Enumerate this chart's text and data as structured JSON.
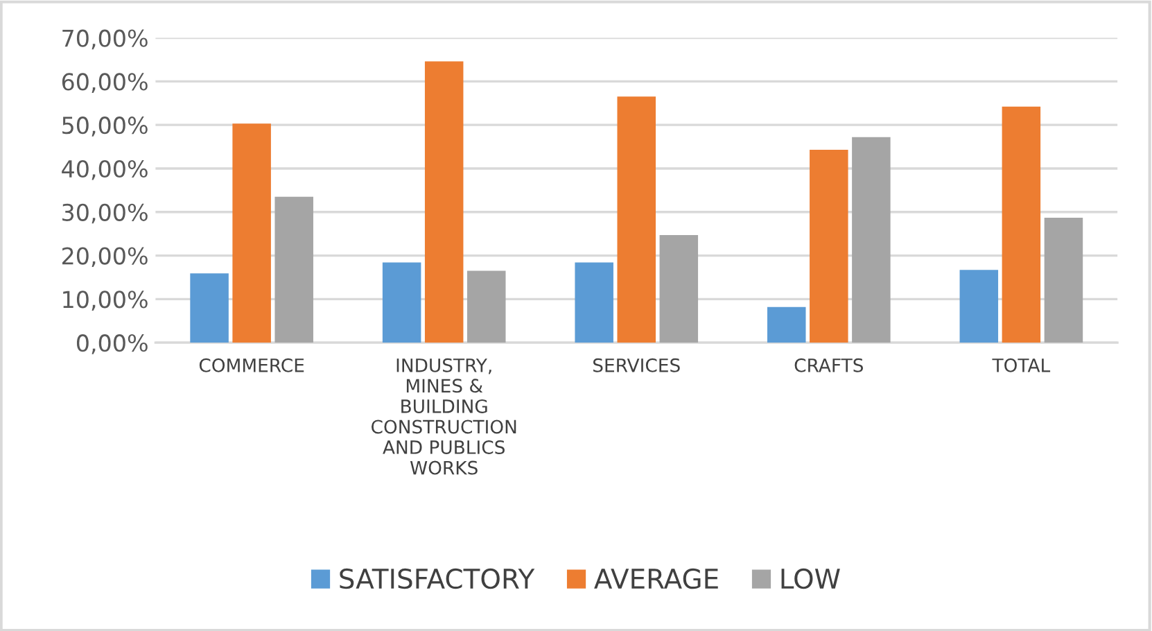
{
  "chart_data": {
    "type": "bar",
    "categories": [
      "COMMERCE",
      "INDUSTRY,\nMINES &\nBUILDING\nCONSTRUCTION\nAND PUBLICS\nWORKS",
      "SERVICES",
      "CRAFTS",
      "TOTAL"
    ],
    "series": [
      {
        "name": "SATISFACTORY",
        "color": "#5b9bd5",
        "values": [
          15.9,
          18.4,
          18.4,
          8.2,
          16.7
        ]
      },
      {
        "name": "AVERAGE",
        "color": "#ed7d31",
        "values": [
          50.3,
          64.6,
          56.5,
          44.3,
          54.2
        ]
      },
      {
        "name": "LOW",
        "color": "#a5a5a5",
        "values": [
          33.5,
          16.5,
          24.7,
          47.2,
          28.7
        ]
      }
    ],
    "ylim": [
      0,
      70
    ],
    "yticks": [
      {
        "value": 0,
        "label": "0,00%"
      },
      {
        "value": 10,
        "label": "10,00%"
      },
      {
        "value": 20,
        "label": "20,00%"
      },
      {
        "value": 30,
        "label": "30,00%"
      },
      {
        "value": 40,
        "label": "40,00%"
      },
      {
        "value": 50,
        "label": "50,00%"
      },
      {
        "value": 60,
        "label": "60,00%"
      },
      {
        "value": 70,
        "label": "70,00%"
      }
    ],
    "grid": "y",
    "legend": "bottom"
  }
}
